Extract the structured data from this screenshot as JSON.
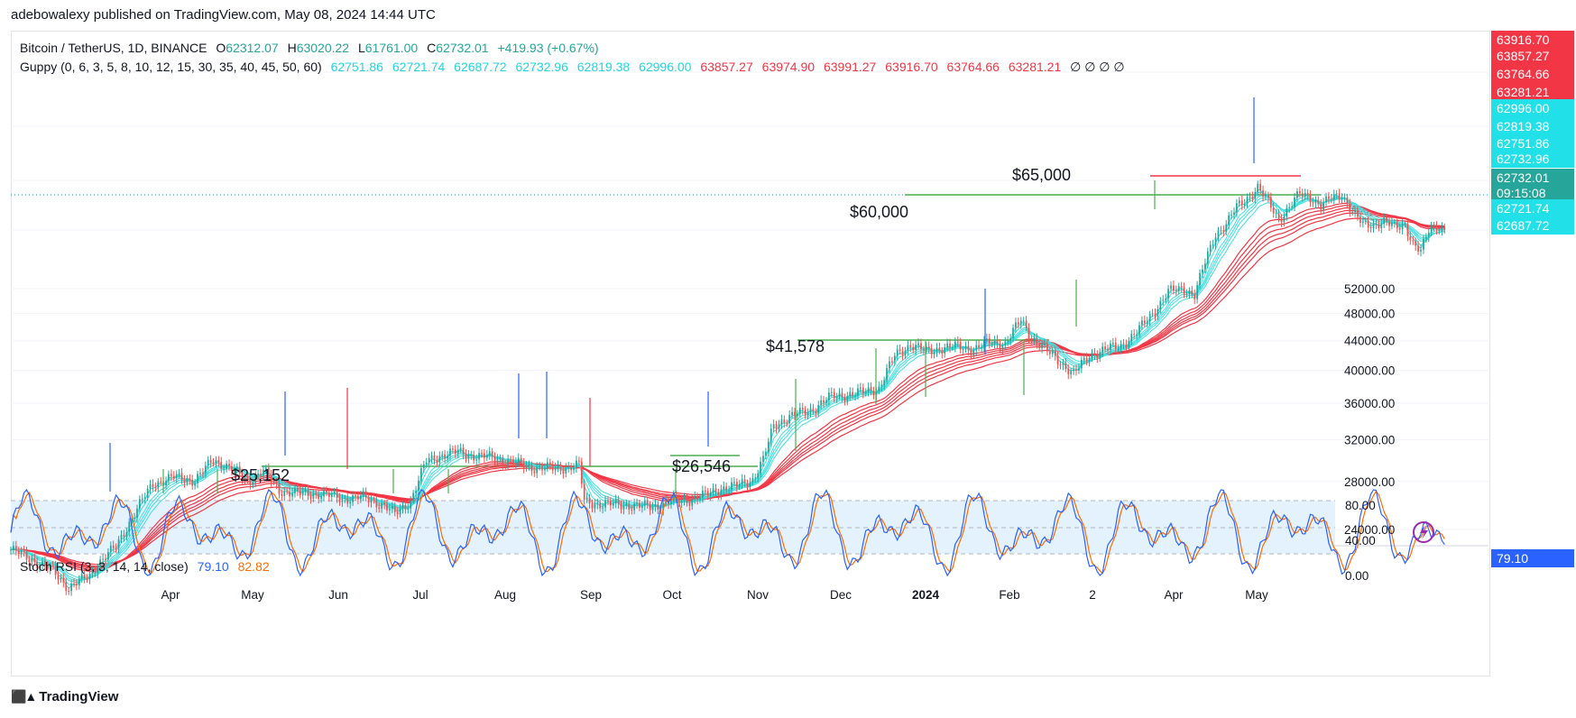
{
  "header": {
    "published_line": "adebowalexy published on TradingView.com, May 08, 2024 14:44 UTC"
  },
  "legend": {
    "symbol": "Bitcoin / TetherUS, 1D, BINANCE",
    "open_label": "O",
    "open": "62312.07",
    "high_label": "H",
    "high": "63020.22",
    "low_label": "L",
    "low": "61761.00",
    "close_label": "C",
    "close": "62732.01",
    "change": "+419.93 (+0.67%)",
    "guppy_label": "Guppy (0, 6, 3, 5, 8, 10, 12, 15, 30, 35, 40, 45, 50, 60)",
    "guppy_fast": [
      "62751.86",
      "62721.74",
      "62687.72",
      "62732.96",
      "62819.38",
      "62996.00"
    ],
    "guppy_slow": [
      "63857.27",
      "63974.90",
      "63991.27",
      "63916.70",
      "63764.66",
      "63281.21"
    ],
    "guppy_tail": "∅ ∅ ∅ ∅",
    "stoch_label": "Stoch RSI (3, 3, 14, 14, close)",
    "stoch_k": "79.10",
    "stoch_d": "82.82"
  },
  "price_boxes": [
    {
      "text": "63916.70",
      "color": "#f23645"
    },
    {
      "text": "63857.27",
      "color": "#f23645"
    },
    {
      "text": "63764.66",
      "color": "#f23645"
    },
    {
      "text": "63281.21",
      "color": "#f23645"
    },
    {
      "text": "62996.00",
      "color": "#22e0e8"
    },
    {
      "text": "62819.38",
      "color": "#22e0e8"
    },
    {
      "text": "62751.86",
      "color": "#22e0e8"
    },
    {
      "text": "62732.96",
      "color": "#22e0e8"
    },
    {
      "text": "62732.01",
      "color": "#26a69a"
    },
    {
      "text": "09:15:08",
      "color": "#26a69a"
    },
    {
      "text": "62721.74",
      "color": "#22e0e8"
    },
    {
      "text": "62687.72",
      "color": "#22e0e8"
    }
  ],
  "stoch_box": {
    "text": "79.10",
    "color": "#2962ff"
  },
  "footer": {
    "brand": "TradingView"
  },
  "colors": {
    "fast": "#40e0e0",
    "slow": "#f23645",
    "support": "#4caf50",
    "up": "#26a69a",
    "down": "#ef5350",
    "stoch_k": "#2962ff",
    "stoch_d": "#ff6d00",
    "band": "#e3f2fd"
  },
  "chart_data": {
    "type": "line",
    "title": "Bitcoin / TetherUS, 1D, BINANCE",
    "x_labels": [
      "Apr",
      "May",
      "Jun",
      "Jul",
      "Aug",
      "Sep",
      "Oct",
      "Nov",
      "Dec",
      "2024",
      "Feb",
      "2",
      "Apr",
      "May"
    ],
    "y_ticks": [
      24000,
      28000,
      32000,
      36000,
      40000,
      44000,
      48000,
      52000
    ],
    "y_scale": "log",
    "series": [
      {
        "values": [
          [
            0,
            22500
          ],
          [
            8,
            21800
          ],
          [
            16,
            21000
          ],
          [
            22,
            19900
          ],
          [
            30,
            20700
          ],
          [
            33,
            21500
          ],
          [
            40,
            22700
          ],
          [
            46,
            24900
          ],
          [
            54,
            27800
          ],
          [
            62,
            28400
          ],
          [
            70,
            28100
          ],
          [
            77,
            30000
          ],
          [
            84,
            29200
          ],
          [
            90,
            28000
          ],
          [
            96,
            29000
          ],
          [
            102,
            27200
          ],
          [
            110,
            26900
          ],
          [
            118,
            26900
          ],
          [
            126,
            26500
          ],
          [
            134,
            26600
          ],
          [
            142,
            25900
          ],
          [
            146,
            25200
          ],
          [
            152,
            26300
          ],
          [
            158,
            29900
          ],
          [
            164,
            30500
          ],
          [
            170,
            30800
          ],
          [
            176,
            30400
          ],
          [
            182,
            30300
          ],
          [
            190,
            29800
          ],
          [
            198,
            29300
          ],
          [
            206,
            29200
          ],
          [
            212,
            29300
          ],
          [
            216,
            29500
          ],
          [
            218,
            26300
          ],
          [
            224,
            26000
          ],
          [
            232,
            26000
          ],
          [
            240,
            25800
          ],
          [
            246,
            25900
          ],
          [
            252,
            26300
          ],
          [
            258,
            26400
          ],
          [
            264,
            26800
          ],
          [
            270,
            27400
          ],
          [
            276,
            27600
          ],
          [
            282,
            28200
          ],
          [
            286,
            30000
          ],
          [
            290,
            33500
          ],
          [
            296,
            34500
          ],
          [
            304,
            35200
          ],
          [
            312,
            36800
          ],
          [
            318,
            37000
          ],
          [
            324,
            37300
          ],
          [
            330,
            37800
          ],
          [
            336,
            41900
          ],
          [
            342,
            43500
          ],
          [
            348,
            42500
          ],
          [
            354,
            43000
          ],
          [
            360,
            43200
          ],
          [
            366,
            42800
          ],
          [
            372,
            43800
          ],
          [
            378,
            43600
          ],
          [
            384,
            47000
          ],
          [
            388,
            44500
          ],
          [
            394,
            42500
          ],
          [
            400,
            40800
          ],
          [
            404,
            39500
          ],
          [
            410,
            42000
          ],
          [
            416,
            42800
          ],
          [
            422,
            43300
          ],
          [
            428,
            45200
          ],
          [
            434,
            48000
          ],
          [
            440,
            51500
          ],
          [
            446,
            52000
          ],
          [
            450,
            51000
          ],
          [
            454,
            56500
          ],
          [
            458,
            62000
          ],
          [
            462,
            64000
          ],
          [
            466,
            67500
          ],
          [
            470,
            69500
          ],
          [
            474,
            72000
          ],
          [
            478,
            68500
          ],
          [
            482,
            65000
          ],
          [
            486,
            67500
          ],
          [
            490,
            70500
          ],
          [
            494,
            69800
          ],
          [
            498,
            67800
          ],
          [
            502,
            69500
          ],
          [
            506,
            70500
          ],
          [
            510,
            66500
          ],
          [
            514,
            63800
          ],
          [
            518,
            64000
          ],
          [
            522,
            64500
          ],
          [
            526,
            63200
          ],
          [
            530,
            64000
          ],
          [
            533,
            60000
          ],
          [
            536,
            58400
          ],
          [
            539,
            62800
          ],
          [
            542,
            63900
          ],
          [
            545,
            62700
          ]
        ]
      }
    ],
    "annotations": [
      "$65,000",
      "$60,000",
      "$41,578",
      "$25,152",
      "$26,546"
    ],
    "stoch_ticks": [
      0,
      40,
      80
    ],
    "grid": true,
    "legend": "top-left"
  }
}
